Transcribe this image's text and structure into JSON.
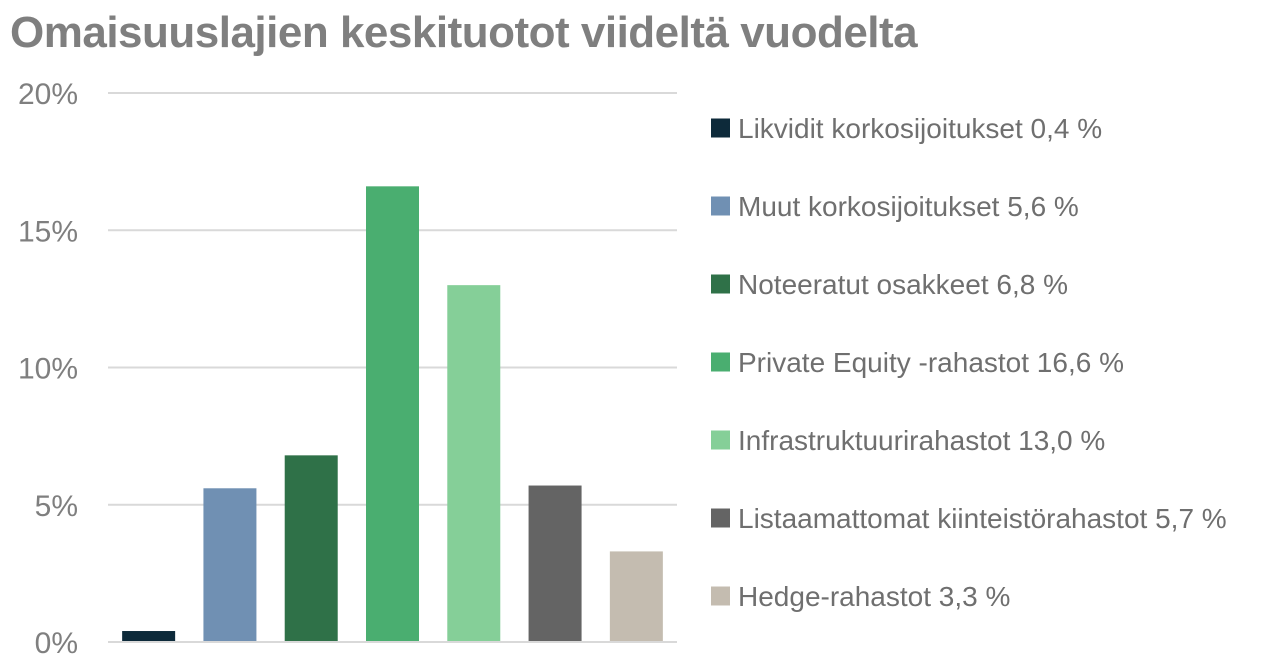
{
  "chart_data": {
    "type": "bar",
    "title": "Omaisuuslajien keskituotot viideltä vuodelta",
    "xlabel": "",
    "ylabel": "",
    "ylim": [
      0,
      20
    ],
    "yticks": [
      {
        "value": 0,
        "label": "0%"
      },
      {
        "value": 5,
        "label": "5%"
      },
      {
        "value": 10,
        "label": "10%"
      },
      {
        "value": 15,
        "label": "15%"
      },
      {
        "value": 20,
        "label": "20%"
      }
    ],
    "grid": true,
    "legend_position": "right",
    "series": [
      {
        "legend": "Likvidit korkosijoitukset 0,4 %",
        "value": 0.4,
        "color": "#0d2a3a"
      },
      {
        "legend": "Muut korkosijoitukset 5,6 %",
        "value": 5.6,
        "color": "#7090b3"
      },
      {
        "legend": "Noteeratut osakkeet 6,8 %",
        "value": 6.8,
        "color": "#2f7148"
      },
      {
        "legend": "Private Equity -rahastot 16,6 %",
        "value": 16.6,
        "color": "#4aae70"
      },
      {
        "legend": "Infrastruktuurirahastot 13,0 %",
        "value": 13.0,
        "color": "#85cf98"
      },
      {
        "legend": "Listaamattomat kiinteistörahastot 5,7 %",
        "value": 5.7,
        "color": "#646464"
      },
      {
        "legend": "Hedge-rahastot 3,3 %",
        "value": 3.3,
        "color": "#c4bcb0"
      }
    ]
  }
}
